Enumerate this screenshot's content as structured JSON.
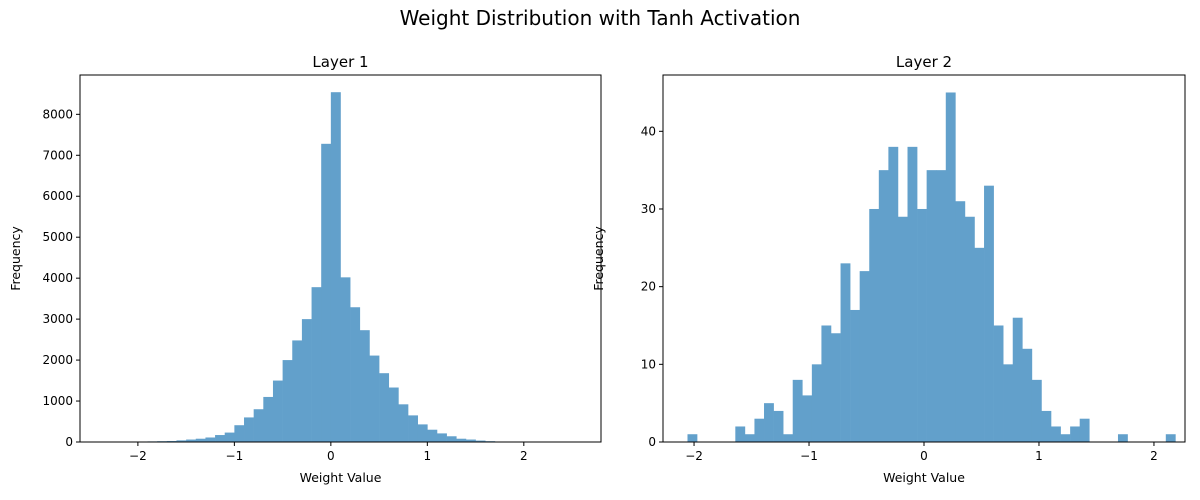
{
  "figure": {
    "title": "Weight Distribution with Tanh Activation"
  },
  "chart_data": [
    {
      "type": "bar",
      "title": "Layer 1",
      "xlabel": "Weight Value",
      "ylabel": "Frequency",
      "xlim": [
        -2.6,
        2.8
      ],
      "ylim": [
        0,
        8960
      ],
      "xticks": [
        -2,
        -1,
        0,
        1,
        2
      ],
      "xtick_labels": [
        "−2",
        "−1",
        "0",
        "1",
        "2"
      ],
      "yticks": [
        0,
        1000,
        2000,
        3000,
        4000,
        5000,
        6000,
        7000,
        8000
      ],
      "yticklabels": [
        "0",
        "1000",
        "2000",
        "3000",
        "4000",
        "5000",
        "6000",
        "7000",
        "8000"
      ],
      "grid": false,
      "color": "#62a0cb",
      "bins": [
        [
          -2.0,
          -1.9,
          10
        ],
        [
          -1.9,
          -1.8,
          15
        ],
        [
          -1.8,
          -1.7,
          20
        ],
        [
          -1.7,
          -1.6,
          25
        ],
        [
          -1.6,
          -1.5,
          40
        ],
        [
          -1.5,
          -1.4,
          60
        ],
        [
          -1.4,
          -1.3,
          80
        ],
        [
          -1.3,
          -1.2,
          110
        ],
        [
          -1.2,
          -1.1,
          170
        ],
        [
          -1.1,
          -1.0,
          230
        ],
        [
          -1.0,
          -0.9,
          410
        ],
        [
          -0.9,
          -0.8,
          600
        ],
        [
          -0.8,
          -0.7,
          800
        ],
        [
          -0.7,
          -0.6,
          1100
        ],
        [
          -0.6,
          -0.5,
          1500
        ],
        [
          -0.5,
          -0.4,
          2000
        ],
        [
          -0.4,
          -0.3,
          2480
        ],
        [
          -0.3,
          -0.2,
          3000
        ],
        [
          -0.2,
          -0.1,
          3780
        ],
        [
          -0.1,
          0.0,
          7280
        ],
        [
          0.0,
          0.1,
          8540
        ],
        [
          0.1,
          0.2,
          4020
        ],
        [
          0.2,
          0.3,
          3290
        ],
        [
          0.3,
          0.4,
          2730
        ],
        [
          0.4,
          0.5,
          2110
        ],
        [
          0.5,
          0.6,
          1680
        ],
        [
          0.6,
          0.7,
          1330
        ],
        [
          0.7,
          0.8,
          920
        ],
        [
          0.8,
          0.9,
          650
        ],
        [
          0.9,
          1.0,
          430
        ],
        [
          1.0,
          1.1,
          300
        ],
        [
          1.1,
          1.2,
          210
        ],
        [
          1.2,
          1.3,
          140
        ],
        [
          1.3,
          1.4,
          80
        ],
        [
          1.4,
          1.5,
          60
        ],
        [
          1.5,
          1.6,
          35
        ],
        [
          1.6,
          1.7,
          20
        ],
        [
          1.7,
          1.8,
          12
        ],
        [
          1.8,
          1.9,
          8
        ]
      ]
    },
    {
      "type": "bar",
      "title": "Layer 2",
      "xlabel": "Weight Value",
      "ylabel": "Frequency",
      "xlim": [
        -2.27,
        2.27
      ],
      "ylim": [
        0,
        47.25
      ],
      "xticks": [
        -2,
        -1,
        0,
        1,
        2
      ],
      "xtick_labels": [
        "−2",
        "−1",
        "0",
        "1",
        "2"
      ],
      "yticks": [
        0,
        10,
        20,
        30,
        40
      ],
      "yticklabels": [
        "0",
        "10",
        "20",
        "30",
        "40"
      ],
      "grid": false,
      "color": "#62a0cb",
      "bin_start": -2.057,
      "bin_width": 0.0832,
      "counts": [
        1,
        0,
        0,
        0,
        0,
        2,
        1,
        3,
        5,
        4,
        1,
        8,
        6,
        10,
        15,
        14,
        23,
        17,
        22,
        30,
        35,
        38,
        29,
        38,
        30,
        35,
        35,
        45,
        31,
        29,
        25,
        33,
        15,
        10,
        16,
        12,
        8,
        4,
        2,
        1,
        2,
        3,
        0,
        0,
        0,
        1,
        0,
        0,
        0,
        0,
        1
      ]
    }
  ]
}
